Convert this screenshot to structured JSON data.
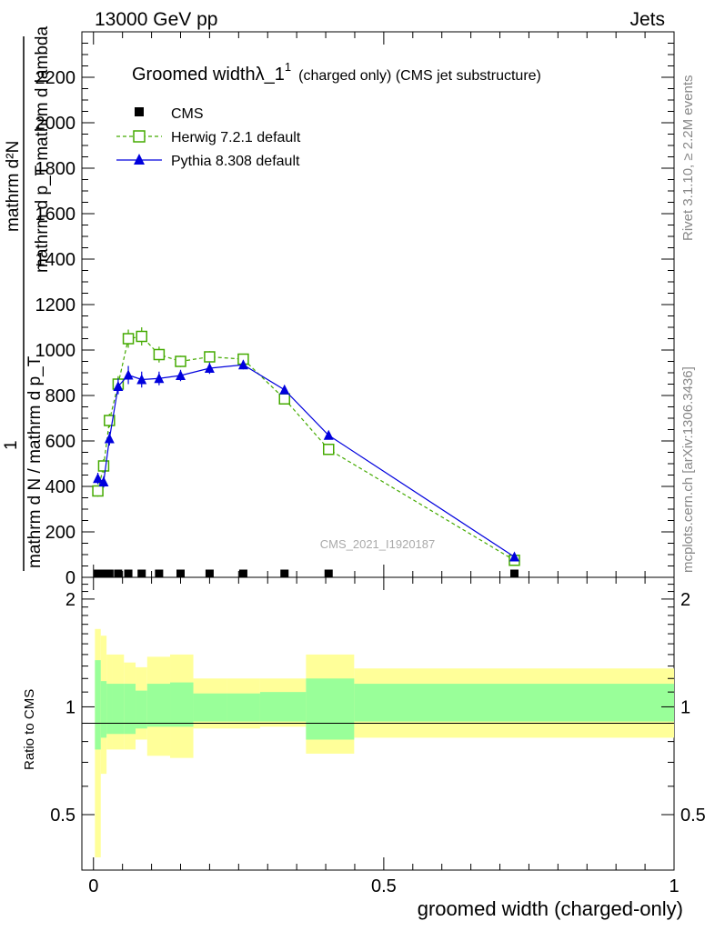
{
  "header": {
    "left": "13000 GeV pp",
    "right": "Jets"
  },
  "side": {
    "rivet": "Rivet 3.1.10, ≥ 2.2M events",
    "mcplots": "mcplots.cern.ch [arXiv:1306.3436]"
  },
  "chart_data": {
    "type": "line",
    "title_main": "Groomed width",
    "title_symbol": "λ_1",
    "title_sup": "1",
    "title_tail": "(charged only) (CMS jet substructure)",
    "watermark": "CMS_2021_I1920187",
    "xlabel": "groomed width (charged-only)",
    "ylabel_numerator": "mathrm d²N",
    "ylabel_denominator": "mathrm d p_T mathrm d lambda",
    "ylabel_one": "1",
    "ylabel_frac": "mathrm d N / mathrm d p_T",
    "ratio_ylabel": "Ratio to CMS",
    "xlim": [
      -0.02,
      1.0
    ],
    "ylim": [
      0,
      2400
    ],
    "ratio_ylim": [
      0.35,
      2.3
    ],
    "x_ticks": [
      0,
      0.5,
      1
    ],
    "x_tick_labels": [
      "0",
      "0.5",
      "1"
    ],
    "y_ticks": [
      0,
      200,
      400,
      600,
      800,
      1000,
      1200,
      1400,
      1600,
      1800,
      2000,
      2200
    ],
    "y_tick_labels": [
      "0",
      "200",
      "400",
      "600",
      "800",
      "1000",
      "1200",
      "1400",
      "1600",
      "1800",
      "2000",
      "2200"
    ],
    "ratio_ticks": [
      0.5,
      1,
      2
    ],
    "ratio_tick_labels": [
      "0.5",
      "1",
      "2"
    ],
    "x": [
      0.0075,
      0.0175,
      0.0275,
      0.0425,
      0.06,
      0.083,
      0.113,
      0.15,
      0.2,
      0.258,
      0.329,
      0.405,
      0.725
    ],
    "bin_edges": [
      0.0025,
      0.0125,
      0.0225,
      0.0325,
      0.0525,
      0.0725,
      0.0925,
      0.132,
      0.172,
      0.23,
      0.287,
      0.366,
      0.449,
      1.0
    ],
    "series": [
      {
        "name": "CMS",
        "values": [
          2,
          2,
          2,
          2,
          2,
          2,
          2,
          2,
          2,
          2,
          2,
          2,
          2
        ],
        "errors": [
          0,
          0,
          0,
          0,
          0,
          0,
          0,
          0,
          0,
          0,
          0,
          0,
          0
        ],
        "color": "#000000",
        "marker": "square-filled"
      },
      {
        "name": "Herwig 7.2.1 default",
        "values": [
          380,
          490,
          690,
          850,
          1050,
          1060,
          980,
          950,
          970,
          960,
          785,
          563,
          75
        ],
        "errors": [
          25,
          30,
          30,
          35,
          40,
          40,
          35,
          25,
          25,
          20,
          15,
          12,
          5
        ],
        "color": "#44aa00",
        "marker": "square-open"
      },
      {
        "name": "Pythia 8.308 default",
        "values": [
          435,
          420,
          610,
          840,
          890,
          870,
          875,
          888,
          920,
          935,
          825,
          625,
          90
        ],
        "errors": [
          25,
          25,
          30,
          35,
          40,
          35,
          30,
          25,
          25,
          20,
          15,
          12,
          5
        ],
        "color": "#0000dd",
        "marker": "triangle-filled"
      }
    ],
    "ratio_band_inner": {
      "color": "#99ff99",
      "lo": [
        0.76,
        0.82,
        0.84,
        0.84,
        0.84,
        0.87,
        0.88,
        0.88,
        0.91,
        0.91,
        0.91,
        0.81,
        0.91
      ],
      "hi": [
        1.35,
        1.18,
        1.16,
        1.16,
        1.16,
        1.11,
        1.16,
        1.17,
        1.09,
        1.09,
        1.1,
        1.2,
        1.16
      ]
    },
    "ratio_band_outer": {
      "color": "#ffff99",
      "lo": [
        0.38,
        0.65,
        0.76,
        0.76,
        0.76,
        0.81,
        0.73,
        0.72,
        0.87,
        0.87,
        0.88,
        0.74,
        0.82
      ],
      "hi": [
        1.65,
        1.58,
        1.4,
        1.4,
        1.33,
        1.29,
        1.38,
        1.4,
        1.2,
        1.2,
        1.2,
        1.4,
        1.28
      ]
    }
  }
}
